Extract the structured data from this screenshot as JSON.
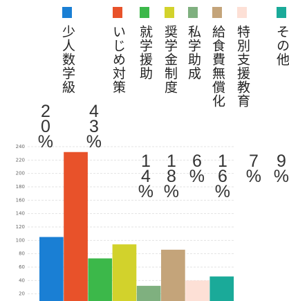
{
  "chart_data": {
    "type": "bar",
    "categories": [
      "少人数学級",
      "いじめ対策",
      "就学援助",
      "奨学金制度",
      "私学助成",
      "給食費無償化",
      "特別支援教育",
      "その他"
    ],
    "values": [
      105,
      232,
      73,
      94,
      32,
      86,
      40,
      46
    ],
    "colors": [
      "#1a7fd4",
      "#e8522a",
      "#3cb84a",
      "#d2d22c",
      "#7fb07f",
      "#c4a47a",
      "#fde0d6",
      "#1aaa99"
    ],
    "value_labels": [
      "20%",
      "43%",
      "14%",
      "18%",
      "6%",
      "16%",
      "7%",
      "9%"
    ],
    "ylim": [
      0,
      240
    ],
    "yticks": [
      20,
      40,
      60,
      80,
      100,
      120,
      140,
      160,
      180,
      200,
      220,
      240
    ],
    "grid": true
  }
}
